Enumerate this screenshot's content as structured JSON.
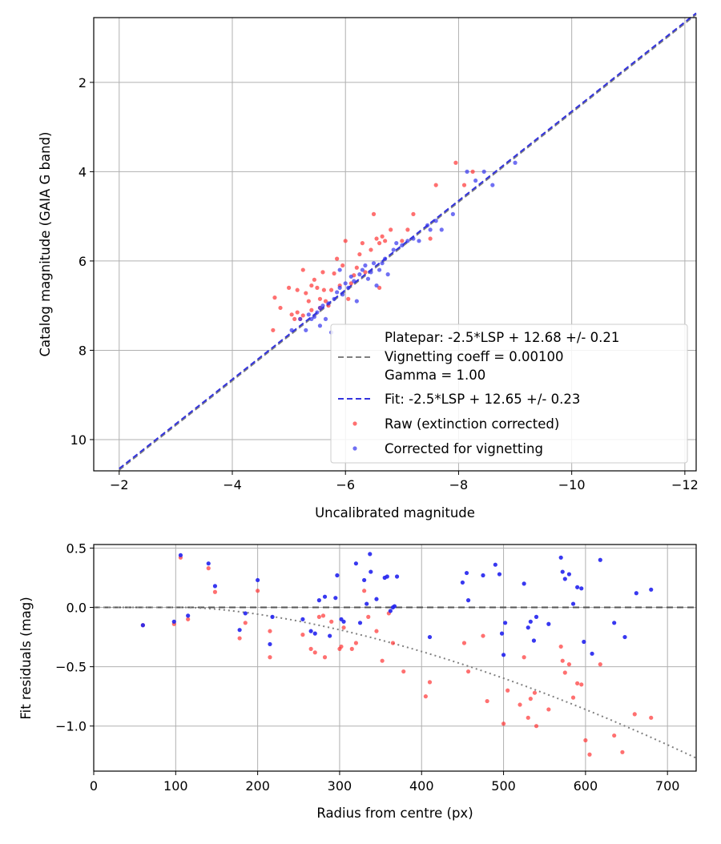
{
  "chart_data": [
    {
      "type": "scatter",
      "xlabel": "Uncalibrated magnitude",
      "ylabel": "Catalog magnitude (GAIA G band)",
      "xlim": [
        -1.55,
        -12.2
      ],
      "ylim": [
        0.55,
        10.7
      ],
      "x_inverted": true,
      "y_inverted": true,
      "xticks": [
        -2,
        -4,
        -6,
        -8,
        -10,
        -12
      ],
      "yticks": [
        2,
        4,
        6,
        8,
        10
      ],
      "grid": true,
      "legend_position": "lower-right",
      "legend": {
        "platepar": [
          "Platepar: -2.5*LSP + 12.68 +/- 0.21",
          "Vignetting coeff = 0.00100",
          "Gamma = 1.00"
        ],
        "fit": "Fit: -2.5*LSP + 12.65 +/- 0.23",
        "raw": "Raw (extinction corrected)",
        "corrected": "Corrected for vignetting"
      },
      "lines": [
        {
          "name": "Platepar",
          "style": "dashed",
          "color": "#808080",
          "slope": 1.0,
          "intercept": 12.68
        },
        {
          "name": "Fit",
          "style": "dashed",
          "color": "#3333dd",
          "slope": 1.0,
          "intercept": 12.65
        }
      ],
      "series": [
        {
          "name": "Raw (extinction corrected)",
          "color": "#ff3333",
          "points": [
            [
              -4.75,
              6.82
            ],
            [
              -4.85,
              7.05
            ],
            [
              -4.72,
              7.55
            ],
            [
              -5.0,
              6.6
            ],
            [
              -5.05,
              7.2
            ],
            [
              -5.1,
              7.3
            ],
            [
              -5.15,
              7.15
            ],
            [
              -5.2,
              7.3
            ],
            [
              -5.25,
              7.22
            ],
            [
              -5.15,
              6.65
            ],
            [
              -5.25,
              6.2
            ],
            [
              -5.35,
              6.9
            ],
            [
              -5.4,
              6.55
            ],
            [
              -5.45,
              6.42
            ],
            [
              -5.5,
              6.6
            ],
            [
              -5.55,
              6.85
            ],
            [
              -5.3,
              6.72
            ],
            [
              -5.4,
              7.1
            ],
            [
              -5.6,
              6.25
            ],
            [
              -5.62,
              6.65
            ],
            [
              -5.65,
              6.9
            ],
            [
              -5.7,
              7.0
            ],
            [
              -5.75,
              6.65
            ],
            [
              -5.8,
              6.28
            ],
            [
              -5.85,
              5.95
            ],
            [
              -5.9,
              6.55
            ],
            [
              -5.95,
              6.1
            ],
            [
              -6.0,
              5.55
            ],
            [
              -6.05,
              6.85
            ],
            [
              -6.1,
              6.5
            ],
            [
              -6.15,
              6.32
            ],
            [
              -6.2,
              6.15
            ],
            [
              -6.25,
              5.85
            ],
            [
              -6.3,
              5.6
            ],
            [
              -6.35,
              6.25
            ],
            [
              -6.45,
              5.75
            ],
            [
              -6.5,
              4.95
            ],
            [
              -6.55,
              5.5
            ],
            [
              -6.6,
              5.6
            ],
            [
              -6.65,
              5.45
            ],
            [
              -6.7,
              5.55
            ],
            [
              -6.8,
              5.3
            ],
            [
              -7.0,
              5.55
            ],
            [
              -7.1,
              5.3
            ],
            [
              -7.2,
              4.95
            ],
            [
              -7.5,
              5.5
            ],
            [
              -7.6,
              4.3
            ],
            [
              -7.95,
              3.8
            ],
            [
              -8.25,
              4.0
            ],
            [
              -8.1,
              4.3
            ],
            [
              -6.6,
              6.6
            ],
            [
              -5.55,
              7.05
            ]
          ]
        },
        {
          "name": "Corrected for vignetting",
          "color": "#3333ee",
          "points": [
            [
              -5.3,
              7.55
            ],
            [
              -5.35,
              7.2
            ],
            [
              -5.4,
              7.3
            ],
            [
              -5.45,
              7.25
            ],
            [
              -5.5,
              7.15
            ],
            [
              -5.55,
              7.05
            ],
            [
              -5.6,
              7.0
            ],
            [
              -5.65,
              7.3
            ],
            [
              -5.7,
              6.95
            ],
            [
              -5.75,
              7.6
            ],
            [
              -5.8,
              6.85
            ],
            [
              -5.85,
              6.7
            ],
            [
              -5.9,
              6.6
            ],
            [
              -5.95,
              6.75
            ],
            [
              -6.0,
              6.5
            ],
            [
              -6.05,
              6.6
            ],
            [
              -6.1,
              6.35
            ],
            [
              -6.15,
              6.45
            ],
            [
              -6.2,
              6.9
            ],
            [
              -6.25,
              6.3
            ],
            [
              -6.3,
              6.2
            ],
            [
              -6.35,
              6.1
            ],
            [
              -6.4,
              6.4
            ],
            [
              -6.45,
              6.25
            ],
            [
              -6.5,
              6.05
            ],
            [
              -6.55,
              6.55
            ],
            [
              -6.6,
              6.2
            ],
            [
              -6.65,
              6.05
            ],
            [
              -6.7,
              5.95
            ],
            [
              -6.75,
              6.3
            ],
            [
              -6.85,
              5.75
            ],
            [
              -6.9,
              5.6
            ],
            [
              -7.0,
              5.65
            ],
            [
              -7.1,
              5.55
            ],
            [
              -7.2,
              5.5
            ],
            [
              -7.3,
              5.55
            ],
            [
              -7.45,
              5.2
            ],
            [
              -7.5,
              5.3
            ],
            [
              -7.6,
              5.1
            ],
            [
              -7.7,
              5.3
            ],
            [
              -7.9,
              4.95
            ],
            [
              -8.15,
              4.0
            ],
            [
              -8.3,
              4.2
            ],
            [
              -8.45,
              4.0
            ],
            [
              -8.6,
              4.3
            ],
            [
              -9.0,
              3.8
            ],
            [
              -5.05,
              7.55
            ],
            [
              -5.2,
              7.3
            ],
            [
              -5.55,
              7.45
            ],
            [
              -5.9,
              6.2
            ]
          ]
        }
      ]
    },
    {
      "type": "scatter",
      "xlabel": "Radius from centre (px)",
      "ylabel": "Fit residuals (mag)",
      "xlim": [
        0,
        735
      ],
      "ylim": [
        -1.38,
        0.53
      ],
      "xticks": [
        0,
        100,
        200,
        300,
        400,
        500,
        600,
        700
      ],
      "yticks": [
        0.5,
        0.0,
        -0.5,
        -1.0
      ],
      "ytick_labels": [
        "0.5",
        "0.0",
        "−0.5",
        "−1.0"
      ],
      "grid": true,
      "zero_line": {
        "style": "dashed",
        "color": "#555555",
        "y": 0.0
      },
      "vignetting_curve": {
        "style": "dotted",
        "color": "#808080",
        "coeff": 0.001
      },
      "series": [
        {
          "name": "Raw",
          "color": "#ff3333",
          "points": [
            [
              60,
              -0.15
            ],
            [
              98,
              -0.14
            ],
            [
              106,
              0.42
            ],
            [
              115,
              -0.1
            ],
            [
              140,
              0.33
            ],
            [
              148,
              0.13
            ],
            [
              178,
              -0.26
            ],
            [
              185,
              -0.13
            ],
            [
              200,
              0.14
            ],
            [
              215,
              -0.42
            ],
            [
              215,
              -0.2
            ],
            [
              255,
              -0.23
            ],
            [
              265,
              -0.35
            ],
            [
              270,
              -0.38
            ],
            [
              275,
              -0.08
            ],
            [
              280,
              -0.07
            ],
            [
              282,
              -0.42
            ],
            [
              290,
              -0.12
            ],
            [
              300,
              -0.35
            ],
            [
              302,
              -0.33
            ],
            [
              305,
              -0.17
            ],
            [
              315,
              -0.35
            ],
            [
              320,
              -0.3
            ],
            [
              330,
              0.14
            ],
            [
              335,
              -0.08
            ],
            [
              345,
              -0.2
            ],
            [
              352,
              -0.45
            ],
            [
              360,
              -0.05
            ],
            [
              365,
              -0.3
            ],
            [
              378,
              -0.54
            ],
            [
              405,
              -0.75
            ],
            [
              410,
              -0.63
            ],
            [
              452,
              -0.3
            ],
            [
              457,
              -0.54
            ],
            [
              475,
              -0.24
            ],
            [
              480,
              -0.79
            ],
            [
              500,
              -0.98
            ],
            [
              505,
              -0.7
            ],
            [
              520,
              -0.82
            ],
            [
              525,
              -0.42
            ],
            [
              530,
              -0.93
            ],
            [
              533,
              -0.77
            ],
            [
              538,
              -0.72
            ],
            [
              540,
              -1.0
            ],
            [
              555,
              -0.86
            ],
            [
              570,
              -0.33
            ],
            [
              572,
              -0.45
            ],
            [
              575,
              -0.55
            ],
            [
              580,
              -0.48
            ],
            [
              585,
              -0.76
            ],
            [
              590,
              -0.64
            ],
            [
              595,
              -0.65
            ],
            [
              600,
              -1.12
            ],
            [
              605,
              -1.24
            ],
            [
              618,
              -0.48
            ],
            [
              635,
              -1.08
            ],
            [
              645,
              -1.22
            ],
            [
              660,
              -0.9
            ],
            [
              680,
              -0.93
            ]
          ]
        },
        {
          "name": "Corrected",
          "color": "#2222ee",
          "points": [
            [
              60,
              -0.15
            ],
            [
              98,
              -0.12
            ],
            [
              106,
              0.44
            ],
            [
              115,
              -0.07
            ],
            [
              140,
              0.37
            ],
            [
              148,
              0.18
            ],
            [
              178,
              -0.19
            ],
            [
              185,
              -0.05
            ],
            [
              200,
              0.23
            ],
            [
              215,
              -0.31
            ],
            [
              218,
              -0.08
            ],
            [
              255,
              -0.1
            ],
            [
              265,
              -0.2
            ],
            [
              270,
              -0.22
            ],
            [
              275,
              0.06
            ],
            [
              282,
              0.09
            ],
            [
              288,
              -0.24
            ],
            [
              295,
              0.08
            ],
            [
              297,
              0.27
            ],
            [
              302,
              -0.1
            ],
            [
              305,
              -0.12
            ],
            [
              320,
              0.37
            ],
            [
              325,
              -0.13
            ],
            [
              330,
              0.23
            ],
            [
              333,
              0.03
            ],
            [
              337,
              0.45
            ],
            [
              338,
              0.3
            ],
            [
              345,
              0.07
            ],
            [
              355,
              0.25
            ],
            [
              358,
              0.26
            ],
            [
              362,
              -0.03
            ],
            [
              365,
              0.0
            ],
            [
              367,
              0.01
            ],
            [
              370,
              0.26
            ],
            [
              410,
              -0.25
            ],
            [
              450,
              0.21
            ],
            [
              455,
              0.29
            ],
            [
              457,
              0.06
            ],
            [
              475,
              0.27
            ],
            [
              490,
              0.36
            ],
            [
              495,
              0.28
            ],
            [
              498,
              -0.22
            ],
            [
              500,
              -0.4
            ],
            [
              502,
              -0.13
            ],
            [
              525,
              0.2
            ],
            [
              530,
              -0.17
            ],
            [
              533,
              -0.12
            ],
            [
              537,
              -0.28
            ],
            [
              540,
              -0.08
            ],
            [
              555,
              -0.14
            ],
            [
              570,
              0.42
            ],
            [
              572,
              0.3
            ],
            [
              575,
              0.24
            ],
            [
              580,
              0.28
            ],
            [
              585,
              0.03
            ],
            [
              590,
              0.17
            ],
            [
              595,
              0.16
            ],
            [
              598,
              -0.29
            ],
            [
              608,
              -0.39
            ],
            [
              618,
              0.4
            ],
            [
              635,
              -0.13
            ],
            [
              648,
              -0.25
            ],
            [
              662,
              0.12
            ],
            [
              680,
              0.15
            ]
          ]
        }
      ]
    }
  ]
}
